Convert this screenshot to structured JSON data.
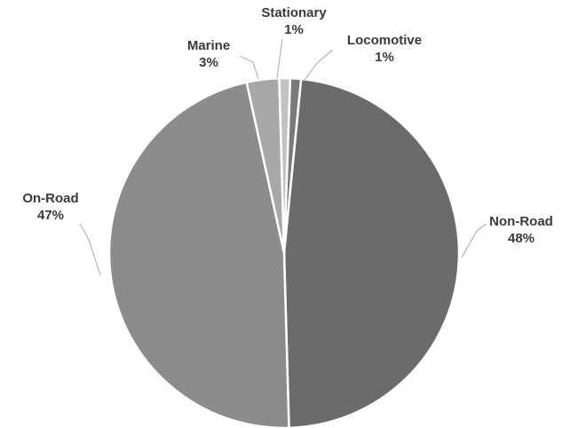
{
  "chart_data": {
    "type": "pie",
    "title": "",
    "slices": [
      {
        "label": "Locomotive",
        "value": 1,
        "display": "1%",
        "color": "#7a7a7a"
      },
      {
        "label": "Non-Road",
        "value": 48,
        "display": "48%",
        "color": "#6b6b6b"
      },
      {
        "label": "On-Road",
        "value": 47,
        "display": "47%",
        "color": "#8c8c8c"
      },
      {
        "label": "Marine",
        "value": 3,
        "display": "3%",
        "color": "#a8a8a8"
      },
      {
        "label": "Stationary",
        "value": 1,
        "display": "1%",
        "color": "#c2c2c2"
      }
    ],
    "legend": "none",
    "data_labels": "outside with leader lines"
  }
}
